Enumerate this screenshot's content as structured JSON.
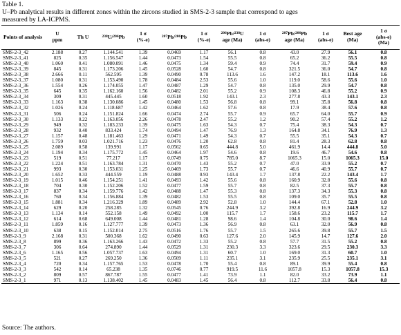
{
  "caption": {
    "line1": "Table 1.",
    "line2": "U–Pb analytical results in different zones within the zircons studied in SMS-2-3 sample that correspond to ages",
    "line3": "measured by LA-ICPMS."
  },
  "columns": [
    {
      "pre": "",
      "sup": "",
      "main": "Points of analysis",
      "post": ""
    },
    {
      "pre": "",
      "sup": "",
      "main": "U ppm",
      "post": ""
    },
    {
      "pre": "",
      "sup": "",
      "main": "Th U",
      "post": ""
    },
    {
      "pre": "",
      "sup": "238",
      "main": "U/",
      "post": ""
    },
    {
      "pre": "",
      "sup": "",
      "main": "1σ (%-e)",
      "post": ""
    },
    {
      "pre": "",
      "sup": "207",
      "main": "Pb/",
      "post": ""
    },
    {
      "pre": "",
      "sup": "",
      "main": "1σ (%-e)",
      "post": ""
    },
    {
      "pre": "",
      "sup": "206",
      "main": "Pb/",
      "post": ""
    },
    {
      "pre": "",
      "sup": "",
      "main": "1σ (abs-e)",
      "post": ""
    },
    {
      "pre": "",
      "sup": "207",
      "main": "Pb/",
      "post": ""
    },
    {
      "pre": "",
      "sup": "",
      "main": "1σ (abs-e)",
      "post": ""
    },
    {
      "pre": "",
      "sup": "",
      "main": "Best age (Ma)",
      "post": ""
    },
    {
      "pre": "",
      "sup": "",
      "main": "1σ (abs-e) (Ma)",
      "post": ""
    }
  ],
  "headers": {
    "h0": "Points of analysis",
    "h1a": "U",
    "h1b": "ppm",
    "h2": "Th U",
    "h3sup1": "238",
    "h3mid": "U/",
    "h3sup2": "206",
    "h3end": "Pb",
    "h4a": "1 σ",
    "h4b": "(%-e)",
    "h5sup1": "207",
    "h5mid": "Pb/",
    "h5sup2": "206",
    "h5end": "Pb",
    "h6a": "1 σ",
    "h6b": "(%-e)",
    "h7sup1": "206",
    "h7mid": "Pb/",
    "h7sup2": "238",
    "h7end": "U",
    "h7b": "age (Ma)",
    "h8a": "1 σ",
    "h8b": "(abs-e)",
    "h9sup1": "207",
    "h9mid": "Pb/",
    "h9sup2": "206",
    "h9end": "Pb",
    "h9b": "age (Ma)",
    "h10a": "1 σ",
    "h10b": "(abs-e)",
    "h11a": "Best age",
    "h11b": "(Ma)",
    "h12a": "1 σ",
    "h12b": "(abs-e)",
    "h12c": "(Ma)"
  },
  "rows": [
    [
      "SMS-2-3_42",
      "2.188",
      "0.27",
      "1.144.541",
      "1.39",
      "0.0469",
      "1.17",
      "56.1",
      "0.8",
      "43.0",
      "27.9",
      "56.1",
      "0.8"
    ],
    [
      "SMS-2-3_41",
      "825",
      "0.35",
      "1.156.547",
      "1.44",
      "0.0473",
      "1.54",
      "55.5",
      "0.8",
      "65.2",
      "36.2",
      "55.5",
      "0.8"
    ],
    [
      "SMS-2-3_40",
      "1.060",
      "0.41",
      "1.080.091",
      "1.46",
      "0.0475",
      "1.34",
      "59.4",
      "0.9",
      "74.4",
      "31.7",
      "59.4",
      "0.9"
    ],
    [
      "SMS-2-3_39",
      "845",
      "0.31",
      "1.173.206",
      "1.45",
      "0.0528",
      "1.60",
      "54.7",
      "0.8",
      "321.5",
      "36.0",
      "54.7",
      "0.8"
    ],
    [
      "SMS-2-3_38",
      "2.666",
      "0.11",
      "562.595",
      "1.39",
      "0.0490",
      "0.78",
      "113.6",
      "1.6",
      "147.2",
      "18.1",
      "113.6",
      "1.6"
    ],
    [
      "SMS-2-3_37",
      "1.080",
      "0.31",
      "1.153.490",
      "1.78",
      "0.0484",
      "2.53",
      "55.6",
      "1.0",
      "119.0",
      "58.6",
      "55.6",
      "1.0"
    ],
    [
      "SMS-2-3_36",
      "1.554",
      "0.26",
      "1.174.055",
      "1.47",
      "0.0487",
      "1.29",
      "54.7",
      "0.8",
      "135.0",
      "29.9",
      "54.7",
      "0.8"
    ],
    [
      "SMS-2-3_35",
      "645",
      "0.35",
      "1.162.160",
      "1.56",
      "0.0482",
      "2.01",
      "55.2",
      "0.9",
      "108.3",
      "46.8",
      "55.2",
      "0.9"
    ],
    [
      "SMS-2-3_34",
      "309",
      "0.31",
      "445.445",
      "1.60",
      "0.0518",
      "1.92",
      "143.1",
      "2.3",
      "277.8",
      "43.3",
      "143.1",
      "2.3"
    ],
    [
      "SMS-2-3_33",
      "1.163",
      "0.38",
      "1.130.086",
      "1.45",
      "0.0480",
      "1.53",
      "56.8",
      "0.8",
      "99.1",
      "35.8",
      "56.8",
      "0.8"
    ],
    [
      "SMS-2-3_32",
      "1.026",
      "0.24",
      "1.118.687",
      "1.42",
      "0.0464",
      "1.62",
      "57.6",
      "0.8",
      "17.9",
      "38.4",
      "57.6",
      "0.8"
    ],
    [
      "SMS-2-3_31",
      "506",
      "0.24",
      "1.151.824",
      "1.66",
      "0.0474",
      "2.74",
      "55.7",
      "0.9",
      "65.7",
      "64.0",
      "55.7",
      "0.9"
    ],
    [
      "SMS-2-3_30",
      "1.133",
      "0.22",
      "1.163.056",
      "2.26",
      "0.0478",
      "2.47",
      "55.2",
      "1.2",
      "90.2",
      "57.4",
      "55.2",
      "1.2"
    ],
    [
      "SMS-2-3_29",
      "949",
      "0.32",
      "1.183.233",
      "1.39",
      "0.0475",
      "1.63",
      "54.3",
      "0.7",
      "75.4",
      "38.3",
      "54.3",
      "0.7"
    ],
    [
      "SMS-2-3_28",
      "932",
      "0.40",
      "833.424",
      "1.74",
      "0.0494",
      "1.47",
      "76.9",
      "1.3",
      "164.8",
      "34.1",
      "76.9",
      "1.3"
    ],
    [
      "SMS-2-3_27",
      "1.157",
      "0.48",
      "1.181.463",
      "1.29",
      "0.0471",
      "1.49",
      "54.3",
      "0.7",
      "55.5",
      "35.1",
      "54.3",
      "0.7"
    ],
    [
      "SMS-2-3_26",
      "1.759",
      "0.03",
      "1.021.716",
      "1.23",
      "0.0476",
      "1.20",
      "62.8",
      "0.8",
      "81.4",
      "28.3",
      "62.8",
      "0.8"
    ],
    [
      "SMS-2-3_25",
      "2.089",
      "0.58",
      "139.991",
      "1.17",
      "0.0562",
      "0.65",
      "444.8",
      "5.0",
      "461.9",
      "14.4",
      "444.8",
      "5.0"
    ],
    [
      "SMS-2-3_24",
      "1.194",
      "0.34",
      "1.175.772",
      "1.45",
      "0.0464",
      "1.97",
      "54.6",
      "0.8",
      "19.6",
      "46.7",
      "54.6",
      "0.8"
    ],
    [
      "SMS-2-3_23",
      "519",
      "0.51",
      "77.217",
      "1.17",
      "0.0749",
      "0.75",
      "785.0",
      "8.7",
      "1065.3",
      "15.0",
      "1065.3",
      "15.0"
    ],
    [
      "SMS-2-3_22",
      "1.224",
      "0.51",
      "1.163.784",
      "1.31",
      "0.0470",
      "1.43",
      "55.2",
      "0.7",
      "47.0",
      "33.9",
      "55.2",
      "0.7"
    ],
    [
      "SMS-2-3_21",
      "993",
      "0.30",
      "1.153.031",
      "1.25",
      "0.0469",
      "1.73",
      "55.7",
      "0.7",
      "46.6",
      "40.9",
      "55.7",
      "0.7"
    ],
    [
      "SMS-2-3_20",
      "1.652",
      "0.33",
      "444.559",
      "1.19",
      "0.0488",
      "0.93",
      "143.4",
      "1.7",
      "137.8",
      "22.2",
      "143.4",
      "1.7"
    ],
    [
      "SMS-2-3_19",
      "1.015",
      "0.46",
      "1.154.251",
      "1.41",
      "0.0493",
      "1.42",
      "55.6",
      "0.8",
      "160.9",
      "32.8",
      "55.6",
      "0.8"
    ],
    [
      "SMS-2-3_18",
      "704",
      "0.30",
      "1.152.206",
      "1.52",
      "0.0477",
      "1.59",
      "55.7",
      "0.8",
      "82.5",
      "37.3",
      "55.7",
      "0.8"
    ],
    [
      "SMS-2-3_17",
      "837",
      "0.34",
      "1.159.776",
      "1.42",
      "0.0488",
      "1.47",
      "55.3",
      "0.8",
      "137.3",
      "34.3",
      "55.3",
      "0.8"
    ],
    [
      "SMS-2-3_16",
      "760",
      "0.34",
      "1.156.884",
      "1.39",
      "0.0482",
      "1.53",
      "55.5",
      "0.8",
      "109.0",
      "35.7",
      "55.5",
      "0.8"
    ],
    [
      "SMS-2-3_15",
      "1.881",
      "0.34",
      "1.216.329",
      "1.89",
      "0.0489",
      "2.92",
      "52.8",
      "1.0",
      "144.4",
      "67.1",
      "52.8",
      "1.0"
    ],
    [
      "SMS-2-3_14",
      "629",
      "0.20",
      "258.285",
      "1.32",
      "0.0545",
      "0.76",
      "244.9",
      "3.2",
      "392.8",
      "16.9",
      "244.9",
      "3.2"
    ],
    [
      "SMS-2-3_13",
      "1.134",
      "0.14",
      "552.158",
      "1.49",
      "0.0492",
      "1.00",
      "115.7",
      "1.7",
      "158.6",
      "23.2",
      "115.7",
      "1.7"
    ],
    [
      "SMS-2-3_12",
      "614",
      "0.68",
      "649.008",
      "1.44",
      "0.0481",
      "1.28",
      "98.6",
      "1.4",
      "104.8",
      "30.0",
      "98.6",
      "1.4"
    ],
    [
      "SMS-2-3_11",
      "1.859",
      "0.16",
      "1.127.777",
      "1.39",
      "0.0473",
      "1.36",
      "56.9",
      "0.8",
      "63.1",
      "32.0",
      "56.9",
      "0.8"
    ],
    [
      "SMS-2-3_10",
      "638",
      "0.15",
      "1.152.014",
      "2.75",
      "0.0516",
      "1.76",
      "55.7",
      "1.5",
      "265.6",
      "39.8",
      "55.7",
      "1.5"
    ],
    [
      "SMS-2-3_9",
      "2.168",
      "0.31",
      "500.368",
      "1.62",
      "0.0490",
      "0.63",
      "127.6",
      "2.0",
      "145.9",
      "14.7",
      "127.6",
      "2.0"
    ],
    [
      "SMS-2-3_8",
      "899",
      "0.36",
      "1.163.266",
      "1.43",
      "0.0472",
      "1.33",
      "55.2",
      "0.8",
      "57.7",
      "31.5",
      "55.2",
      "0.8"
    ],
    [
      "SMS-2-3_7",
      "306",
      "0.64",
      "274.890",
      "1.44",
      "0.0529",
      "1.31",
      "230.3",
      "3.3",
      "323.6",
      "29.5",
      "230.3",
      "3.3"
    ],
    [
      "SMS-2-3_6",
      "1.165",
      "0.56",
      "1.057.737",
      "1.63",
      "0.0494",
      "1.31",
      "60.7",
      "1.0",
      "169.0",
      "31.3",
      "60.7",
      "1.0"
    ],
    [
      "SMS-2-3_5",
      "521",
      "0.27",
      "269.250",
      "1.36",
      "0.0509",
      "1.11",
      "235.1",
      "3.1",
      "235.9",
      "25.5",
      "235.1",
      "3.1"
    ],
    [
      "SMS-2-3_4",
      "720",
      "0.34",
      "1.157.765",
      "1.53",
      "0.0478",
      "1.70",
      "55.4",
      "0.8",
      "89.1",
      "39.9",
      "55.4",
      "0.8"
    ],
    [
      "SMS-2-3_3",
      "542",
      "0.14",
      "65.238",
      "1.35",
      "0.0746",
      "0.77",
      "919.5",
      "11.6",
      "1057.8",
      "15.3",
      "1057.8",
      "15.3"
    ],
    [
      "SMS-2-3_2",
      "809",
      "0.57",
      "867.787",
      "1.55",
      "0.0477",
      "1.41",
      "73.9",
      "1.1",
      "82.0",
      "33.2",
      "73.9",
      "1.1"
    ],
    [
      "SMS-2-3_1",
      "971",
      "0.13",
      "1.138.402",
      "1.45",
      "0.0483",
      "1.45",
      "56.4",
      "0.8",
      "112.7",
      "33.8",
      "56.4",
      "0.8"
    ]
  ],
  "source": "Source: The authors."
}
